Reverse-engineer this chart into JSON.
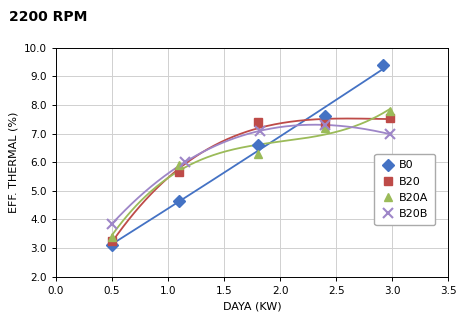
{
  "title": "2200 RPM",
  "xlabel": "DAYA (KW)",
  "ylabel": "EFF. THERMAL (%)",
  "xlim": [
    0.0,
    3.5
  ],
  "ylim": [
    2.0,
    10.0
  ],
  "xticks": [
    0.0,
    0.5,
    1.0,
    1.5,
    2.0,
    2.5,
    3.0,
    3.5
  ],
  "yticks": [
    2.0,
    3.0,
    4.0,
    5.0,
    6.0,
    7.0,
    8.0,
    9.0,
    10.0
  ],
  "series": [
    {
      "label": "B0",
      "color": "#4472C4",
      "marker": "D",
      "markersize": 6,
      "x": [
        0.5,
        1.1,
        1.8,
        2.4,
        2.92
      ],
      "y": [
        3.1,
        4.65,
        6.6,
        7.6,
        9.4
      ],
      "poly_deg": 2
    },
    {
      "label": "B20",
      "color": "#BE4B48",
      "marker": "s",
      "markersize": 6,
      "x": [
        0.5,
        1.1,
        1.8,
        2.4,
        2.98
      ],
      "y": [
        3.25,
        5.65,
        7.4,
        7.35,
        7.55
      ],
      "poly_deg": 3
    },
    {
      "label": "B20A",
      "color": "#9BBB59",
      "marker": "^",
      "markersize": 6,
      "x": [
        0.5,
        1.1,
        1.8,
        2.4,
        2.98
      ],
      "y": [
        3.4,
        5.9,
        6.3,
        7.2,
        7.8
      ],
      "poly_deg": 3
    },
    {
      "label": "B20B",
      "color": "#9E86C8",
      "marker": "x",
      "markersize": 7,
      "x": [
        0.5,
        1.15,
        1.82,
        2.4,
        2.98
      ],
      "y": [
        3.85,
        6.0,
        7.1,
        7.3,
        6.98
      ],
      "poly_deg": 3
    }
  ],
  "background_color": "#FFFFFF",
  "grid_color": "#D0D0D0",
  "title_fontsize": 10,
  "axis_label_fontsize": 8,
  "tick_fontsize": 7.5,
  "legend_fontsize": 8
}
